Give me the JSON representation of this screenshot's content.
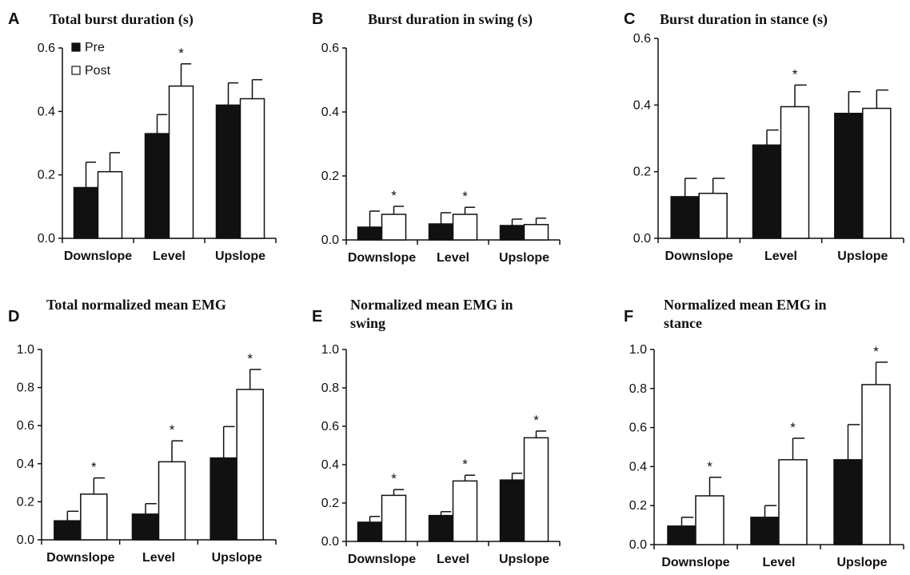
{
  "colors": {
    "pre": "#111111",
    "post": "#ffffff",
    "axis": "#111111"
  },
  "legend": {
    "pre": "Pre",
    "post": "Post"
  },
  "chart_data": [
    {
      "panel": "A",
      "type": "bar",
      "title_lines": [
        "Total burst duration (s)"
      ],
      "categories": [
        "Downslope",
        "Level",
        "Upslope"
      ],
      "ylim": [
        0,
        0.6
      ],
      "yticks": [
        "0.0",
        "0.2",
        "0.4",
        "0.6"
      ],
      "series": [
        {
          "name": "Pre",
          "values": [
            0.16,
            0.33,
            0.42
          ],
          "errors": [
            0.08,
            0.06,
            0.07
          ]
        },
        {
          "name": "Post",
          "values": [
            0.21,
            0.48,
            0.44
          ],
          "errors": [
            0.06,
            0.07,
            0.06
          ]
        }
      ],
      "significance": [
        "",
        "*",
        ""
      ]
    },
    {
      "panel": "B",
      "type": "bar",
      "title_lines": [
        "Burst duration in swing (s)"
      ],
      "categories": [
        "Downslope",
        "Level",
        "Upslope"
      ],
      "ylim": [
        0,
        0.6
      ],
      "yticks": [
        "0.0",
        "0.2",
        "0.4",
        "0.6"
      ],
      "series": [
        {
          "name": "Pre",
          "values": [
            0.04,
            0.05,
            0.045
          ],
          "errors": [
            0.05,
            0.035,
            0.02
          ]
        },
        {
          "name": "Post",
          "values": [
            0.08,
            0.08,
            0.048
          ],
          "errors": [
            0.025,
            0.022,
            0.02
          ]
        }
      ],
      "significance": [
        "*",
        "*",
        ""
      ]
    },
    {
      "panel": "C",
      "type": "bar",
      "title_lines": [
        "Burst duration in stance (s)"
      ],
      "categories": [
        "Downslope",
        "Level",
        "Upslope"
      ],
      "ylim": [
        0,
        0.6
      ],
      "yticks": [
        "0.0",
        "0.2",
        "0.4",
        "0.6"
      ],
      "series": [
        {
          "name": "Pre",
          "values": [
            0.125,
            0.28,
            0.375
          ],
          "errors": [
            0.055,
            0.045,
            0.065
          ]
        },
        {
          "name": "Post",
          "values": [
            0.135,
            0.395,
            0.39
          ],
          "errors": [
            0.045,
            0.065,
            0.055
          ]
        }
      ],
      "significance": [
        "",
        "*",
        ""
      ]
    },
    {
      "panel": "D",
      "type": "bar",
      "title_lines": [
        "Total normalized mean EMG"
      ],
      "categories": [
        "Downslope",
        "Level",
        "Upslope"
      ],
      "ylim": [
        0,
        1.0
      ],
      "yticks": [
        "0.0",
        "0.2",
        "0.4",
        "0.6",
        "0.8",
        "1.0"
      ],
      "series": [
        {
          "name": "Pre",
          "values": [
            0.1,
            0.135,
            0.43
          ],
          "errors": [
            0.05,
            0.055,
            0.165
          ]
        },
        {
          "name": "Post",
          "values": [
            0.24,
            0.41,
            0.79
          ],
          "errors": [
            0.085,
            0.11,
            0.105
          ]
        }
      ],
      "significance": [
        "*",
        "*",
        "*"
      ]
    },
    {
      "panel": "E",
      "type": "bar",
      "title_lines": [
        "Normalized mean EMG in",
        "swing"
      ],
      "categories": [
        "Downslope",
        "Level",
        "Upslope"
      ],
      "ylim": [
        0,
        1.0
      ],
      "yticks": [
        "0.0",
        "0.2",
        "0.4",
        "0.6",
        "0.8",
        "1.0"
      ],
      "series": [
        {
          "name": "Pre",
          "values": [
            0.1,
            0.135,
            0.32
          ],
          "errors": [
            0.03,
            0.02,
            0.035
          ]
        },
        {
          "name": "Post",
          "values": [
            0.24,
            0.315,
            0.54
          ],
          "errors": [
            0.03,
            0.03,
            0.035
          ]
        }
      ],
      "significance": [
        "*",
        "*",
        "*"
      ]
    },
    {
      "panel": "F",
      "type": "bar",
      "title_lines": [
        "Normalized mean EMG in",
        "stance"
      ],
      "categories": [
        "Downslope",
        "Level",
        "Upslope"
      ],
      "ylim": [
        0,
        1.0
      ],
      "yticks": [
        "0.0",
        "0.2",
        "0.4",
        "0.6",
        "0.8",
        "1.0"
      ],
      "series": [
        {
          "name": "Pre",
          "values": [
            0.095,
            0.14,
            0.435
          ],
          "errors": [
            0.045,
            0.06,
            0.18
          ]
        },
        {
          "name": "Post",
          "values": [
            0.25,
            0.435,
            0.82
          ],
          "errors": [
            0.095,
            0.11,
            0.115
          ]
        }
      ],
      "significance": [
        "*",
        "*",
        "*"
      ]
    }
  ]
}
